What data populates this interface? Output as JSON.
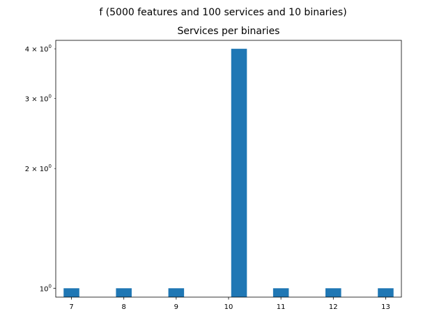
{
  "figure": {
    "suptitle": "f (5000 features and 100 services and 10 binaries)"
  },
  "chart_data": {
    "type": "bar",
    "title": "Services per binaries",
    "xlabel": "",
    "ylabel": "",
    "yscale": "log",
    "grid": false,
    "bar_color": "#1f77b4",
    "bar_width": 0.3,
    "xlim": [
      6.7,
      13.3
    ],
    "ylim": [
      0.95,
      4.2
    ],
    "bars": [
      {
        "x": 7,
        "value": 1
      },
      {
        "x": 8,
        "value": 1
      },
      {
        "x": 9,
        "value": 1
      },
      {
        "x": 10.2,
        "value": 4
      },
      {
        "x": 11,
        "value": 1
      },
      {
        "x": 12,
        "value": 1
      },
      {
        "x": 13,
        "value": 1
      }
    ],
    "xticks": [
      {
        "value": 7,
        "label": "7"
      },
      {
        "value": 8,
        "label": "8"
      },
      {
        "value": 9,
        "label": "9"
      },
      {
        "value": 10,
        "label": "10"
      },
      {
        "value": 11,
        "label": "11"
      },
      {
        "value": 12,
        "label": "12"
      },
      {
        "value": 13,
        "label": "13"
      }
    ],
    "yticks": [
      {
        "value": 1,
        "base": "10",
        "exp": "0",
        "mult": ""
      },
      {
        "value": 2,
        "base": "10",
        "exp": "0",
        "mult": "2 × "
      },
      {
        "value": 3,
        "base": "10",
        "exp": "0",
        "mult": "3 × "
      },
      {
        "value": 4,
        "base": "10",
        "exp": "0",
        "mult": "4 × "
      }
    ]
  }
}
